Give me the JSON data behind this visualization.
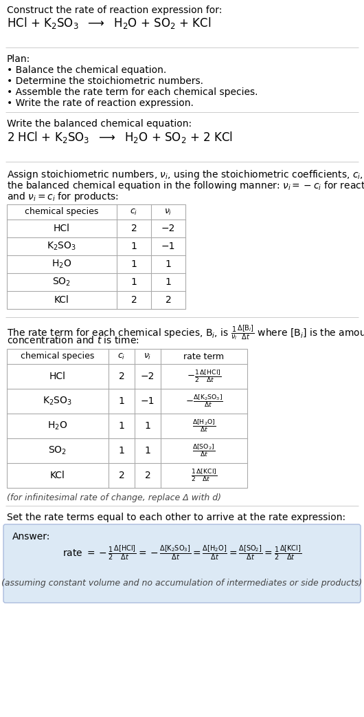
{
  "bg_color": "#ffffff",
  "text_color": "#000000",
  "table_border_color": "#aaaaaa",
  "section_divider_color": "#cccccc",
  "answer_box_color": "#dce9f5",
  "answer_box_border": "#aabbdd",
  "title_text": "Construct the rate of reaction expression for:",
  "plan_header": "Plan:",
  "plan_items": [
    "• Balance the chemical equation.",
    "• Determine the stoichiometric numbers.",
    "• Assemble the rate term for each chemical species.",
    "• Write the rate of reaction expression."
  ],
  "balanced_header": "Write the balanced chemical equation:",
  "stoich_intro_lines": [
    "Assign stoichiometric numbers, $\\nu_i$, using the stoichiometric coefficients, $c_i$, from",
    "the balanced chemical equation in the following manner: $\\nu_i = -c_i$ for reactants",
    "and $\\nu_i = c_i$ for products:"
  ],
  "table1_headers": [
    "chemical species",
    "$c_i$",
    "$\\nu_i$"
  ],
  "table1_rows": [
    [
      "HCl",
      "2",
      "−2"
    ],
    [
      "K$_2$SO$_3$",
      "1",
      "−1"
    ],
    [
      "H$_2$O",
      "1",
      "1"
    ],
    [
      "SO$_2$",
      "1",
      "1"
    ],
    [
      "KCl",
      "2",
      "2"
    ]
  ],
  "rate_intro_lines": [
    "The rate term for each chemical species, B$_i$, is $\\frac{1}{\\nu_i}\\frac{\\Delta[\\mathrm{B}_i]}{\\Delta t}$ where [B$_i$] is the amount",
    "concentration and $t$ is time:"
  ],
  "table2_headers": [
    "chemical species",
    "$c_i$",
    "$\\nu_i$",
    "rate term"
  ],
  "table2_rows": [
    [
      "HCl",
      "2",
      "−2",
      "$-\\frac{1}{2}\\frac{\\Delta[\\mathrm{HCl}]}{\\Delta t}$"
    ],
    [
      "K$_2$SO$_3$",
      "1",
      "−1",
      "$-\\frac{\\Delta[\\mathrm{K_2SO_3}]}{\\Delta t}$"
    ],
    [
      "H$_2$O",
      "1",
      "1",
      "$\\frac{\\Delta[\\mathrm{H_2O}]}{\\Delta t}$"
    ],
    [
      "SO$_2$",
      "1",
      "1",
      "$\\frac{\\Delta[\\mathrm{SO_2}]}{\\Delta t}$"
    ],
    [
      "KCl",
      "2",
      "2",
      "$\\frac{1}{2}\\frac{\\Delta[\\mathrm{KCl}]}{\\Delta t}$"
    ]
  ],
  "infinitesimal_note": "(for infinitesimal rate of change, replace Δ with d)",
  "set_equal_text": "Set the rate terms equal to each other to arrive at the rate expression:",
  "answer_label": "Answer:",
  "assuming_note": "(assuming constant volume and no accumulation of intermediates or side products)"
}
